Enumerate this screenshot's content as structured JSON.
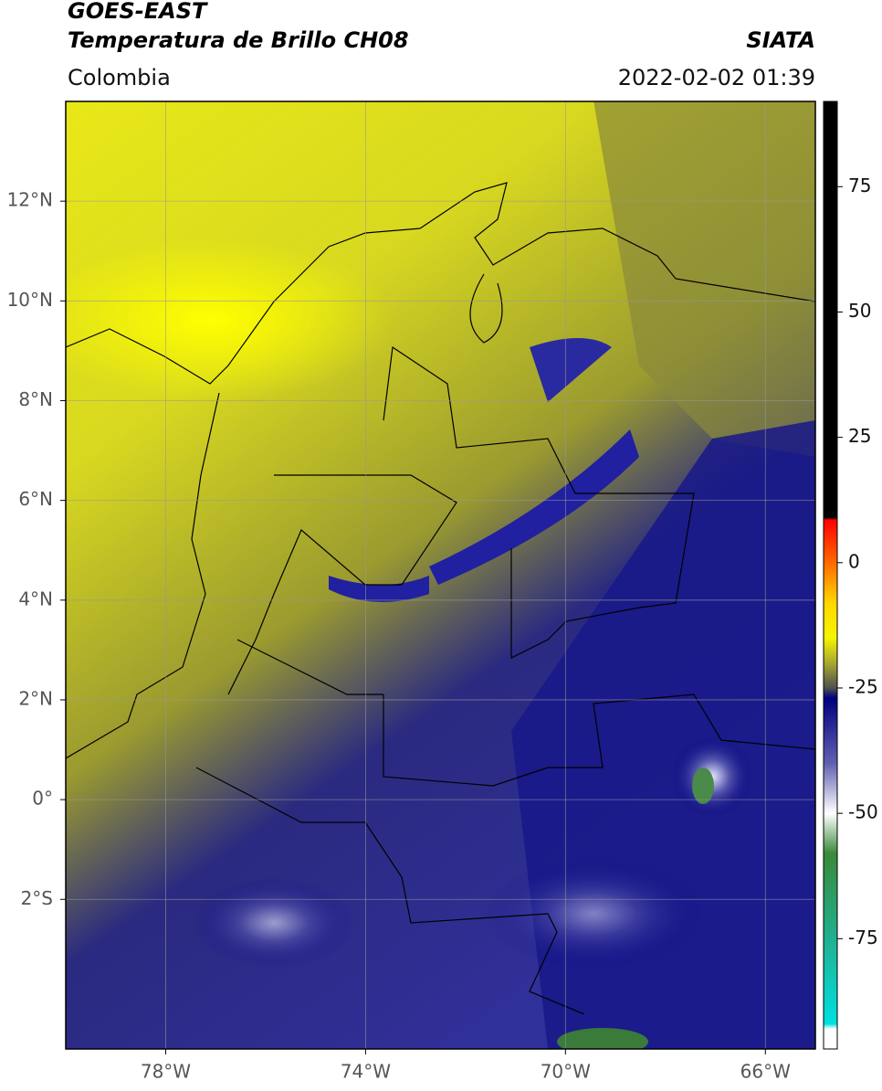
{
  "chart_data": {
    "type": "map",
    "title": "GOES-EAST",
    "subtitle": "Temperatura de Brillo CH08",
    "source": "SIATA",
    "region": "Colombia",
    "datetime": "2022-02-02 01:39",
    "xlim": [
      -80,
      -65
    ],
    "ylim": [
      -5,
      14
    ],
    "xticks": [
      {
        "value": -78,
        "label": "78°W"
      },
      {
        "value": -74,
        "label": "74°W"
      },
      {
        "value": -70,
        "label": "70°W"
      },
      {
        "value": -66,
        "label": "66°W"
      }
    ],
    "yticks": [
      {
        "value": 12,
        "label": "12°N"
      },
      {
        "value": 10,
        "label": "10°N"
      },
      {
        "value": 8,
        "label": "8°N"
      },
      {
        "value": 6,
        "label": "6°N"
      },
      {
        "value": 4,
        "label": "4°N"
      },
      {
        "value": 2,
        "label": "2°N"
      },
      {
        "value": 0,
        "label": "0°"
      },
      {
        "value": -2,
        "label": "2°S"
      }
    ],
    "grid": true,
    "colorbar": {
      "lim": [
        -97,
        92
      ],
      "ticks": [
        75,
        50,
        25,
        0,
        -25,
        -50,
        -75
      ],
      "stops": [
        {
          "value": 92,
          "color": "#000000"
        },
        {
          "value": 9,
          "color": "#000000"
        },
        {
          "value": 8.5,
          "color": "#ff0000"
        },
        {
          "value": 0,
          "color": "#ff6a00"
        },
        {
          "value": -8,
          "color": "#ffd700"
        },
        {
          "value": -15,
          "color": "#f5f500"
        },
        {
          "value": -20,
          "color": "#a8a830"
        },
        {
          "value": -25,
          "color": "#505050"
        },
        {
          "value": -27,
          "color": "#000080"
        },
        {
          "value": -40,
          "color": "#6060b0"
        },
        {
          "value": -50,
          "color": "#ffffff"
        },
        {
          "value": -58,
          "color": "#3a8a3a"
        },
        {
          "value": -75,
          "color": "#20b090"
        },
        {
          "value": -92,
          "color": "#00e0e0"
        },
        {
          "value": -93,
          "color": "#ffffff"
        },
        {
          "value": -97,
          "color": "#ffffff"
        }
      ]
    }
  }
}
